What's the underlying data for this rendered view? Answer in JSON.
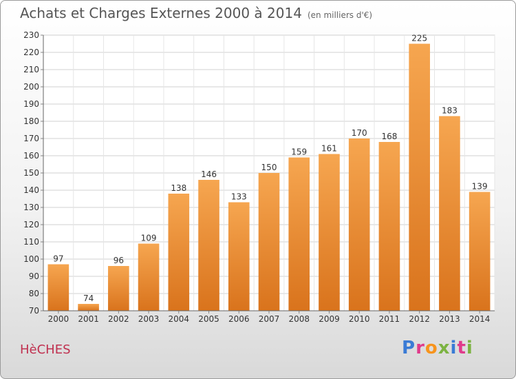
{
  "header": {
    "title": "Achats et Charges Externes 2000 à 2014",
    "unit": "(en milliers d'€)"
  },
  "footer": {
    "commune": "HèCHES",
    "logo_letters": [
      "P",
      "r",
      "o",
      "x",
      "i",
      "t",
      "i"
    ]
  },
  "colors": {
    "bar_top": "#f6a650",
    "bar_bottom": "#d9731c",
    "grid": "#d0d0d0",
    "axis_text": "#333333",
    "logo": [
      "#3a7bd5",
      "#e03b8b",
      "#f7941d",
      "#7cb342",
      "#3a7bd5",
      "#e03b8b",
      "#7cb342"
    ]
  },
  "chart_data": {
    "type": "bar",
    "title": "Achats et Charges Externes 2000 à 2014",
    "categories": [
      "2000",
      "2001",
      "2002",
      "2003",
      "2004",
      "2005",
      "2006",
      "2007",
      "2008",
      "2009",
      "2010",
      "2011",
      "2012",
      "2013",
      "2014"
    ],
    "values": [
      97,
      74,
      96,
      109,
      138,
      146,
      133,
      150,
      159,
      161,
      170,
      168,
      225,
      183,
      139
    ],
    "ylim": [
      70,
      230
    ],
    "yticks": [
      70,
      80,
      90,
      100,
      110,
      120,
      130,
      140,
      150,
      160,
      170,
      180,
      190,
      200,
      210,
      220,
      230
    ],
    "grid": true
  }
}
